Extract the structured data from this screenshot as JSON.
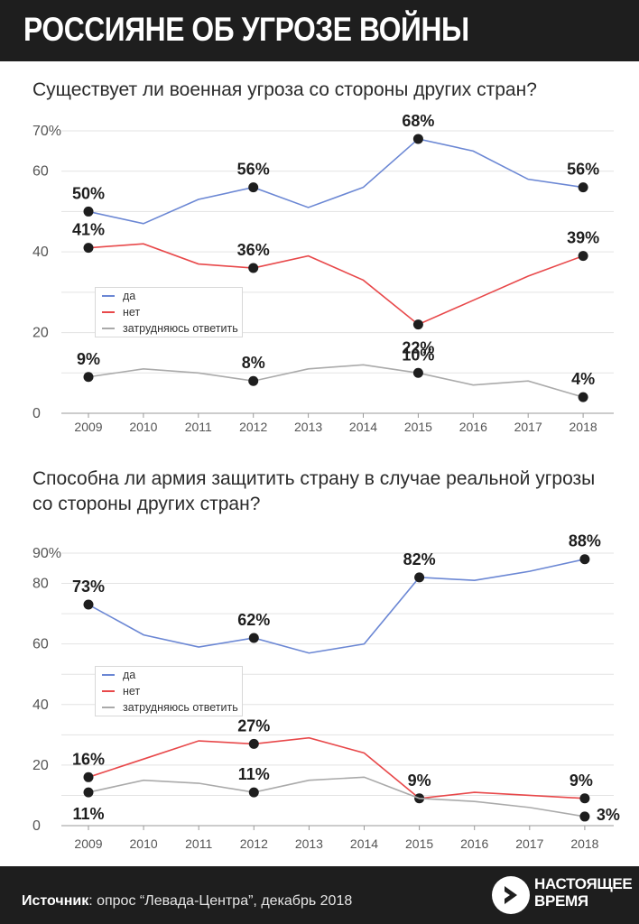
{
  "title": "РОССИЯНЕ ОБ УГРОЗЕ ВОЙНЫ",
  "colors": {
    "blue": "#6b87d4",
    "red": "#e8484a",
    "gray": "#aaaaaa",
    "dark": "#1e1e1e"
  },
  "footer": {
    "source_label": "Источник",
    "source_text": ": опрос “Левада-Центра”, декабрь 2018"
  },
  "logo": {
    "line1": "НАСТОЯЩЕЕ",
    "line2": "ВРЕМЯ",
    "icon": "play-arrow-circle-icon"
  },
  "chart_data": [
    {
      "type": "line",
      "title": "Существует ли военная угроза со стороны других стран?",
      "x": [
        "2009",
        "2010",
        "2011",
        "2012",
        "2013",
        "2014",
        "2015",
        "2016",
        "2017",
        "2018"
      ],
      "ylim": [
        0,
        70
      ],
      "yticks": [
        {
          "v": 0,
          "label": "0"
        },
        {
          "v": 20,
          "label": "20"
        },
        {
          "v": 40,
          "label": "40"
        },
        {
          "v": 60,
          "label": "60"
        },
        {
          "v": 70,
          "label": "70%"
        }
      ],
      "gridlines": [
        10,
        20,
        30,
        40,
        50,
        60,
        70
      ],
      "legend": [
        "да",
        "нет",
        "затрудняюсь ответить"
      ],
      "series": [
        {
          "name": "да",
          "color": "#6b87d4",
          "values": [
            50,
            47,
            53,
            56,
            51,
            56,
            68,
            65,
            58,
            56
          ],
          "labels": [
            {
              "i": 0,
              "text": "50%"
            },
            {
              "i": 3,
              "text": "56%"
            },
            {
              "i": 6,
              "text": "68%"
            },
            {
              "i": 9,
              "text": "56%"
            }
          ]
        },
        {
          "name": "нет",
          "color": "#e8484a",
          "values": [
            41,
            42,
            37,
            36,
            39,
            33,
            22,
            28,
            34,
            39
          ],
          "labels": [
            {
              "i": 0,
              "text": "41%"
            },
            {
              "i": 3,
              "text": "36%"
            },
            {
              "i": 6,
              "text": "22%"
            },
            {
              "i": 9,
              "text": "39%"
            }
          ]
        },
        {
          "name": "затрудняюсь ответить",
          "color": "#aaaaaa",
          "values": [
            9,
            11,
            10,
            8,
            11,
            12,
            10,
            7,
            8,
            4
          ],
          "labels": [
            {
              "i": 0,
              "text": "9%"
            },
            {
              "i": 3,
              "text": "8%"
            },
            {
              "i": 6,
              "text": "10%"
            },
            {
              "i": 9,
              "text": "4%"
            }
          ]
        }
      ]
    },
    {
      "type": "line",
      "title": "Способна ли армия защитить страну в случае реальной угрозы со стороны других стран?",
      "x": [
        "2009",
        "2010",
        "2011",
        "2012",
        "2013",
        "2014",
        "2015",
        "2016",
        "2017",
        "2018"
      ],
      "ylim": [
        0,
        90
      ],
      "yticks": [
        {
          "v": 0,
          "label": "0"
        },
        {
          "v": 20,
          "label": "20"
        },
        {
          "v": 40,
          "label": "40"
        },
        {
          "v": 60,
          "label": "60"
        },
        {
          "v": 80,
          "label": "80"
        },
        {
          "v": 90,
          "label": "90%"
        }
      ],
      "gridlines": [
        10,
        20,
        30,
        40,
        50,
        60,
        70,
        80,
        90
      ],
      "legend": [
        "да",
        "нет",
        "затрудняюсь ответить"
      ],
      "series": [
        {
          "name": "да",
          "color": "#6b87d4",
          "values": [
            73,
            63,
            59,
            62,
            57,
            60,
            82,
            81,
            84,
            88
          ],
          "labels": [
            {
              "i": 0,
              "text": "73%"
            },
            {
              "i": 3,
              "text": "62%"
            },
            {
              "i": 6,
              "text": "82%"
            },
            {
              "i": 9,
              "text": "88%"
            }
          ]
        },
        {
          "name": "нет",
          "color": "#e8484a",
          "values": [
            16,
            22,
            28,
            27,
            29,
            24,
            9,
            11,
            10,
            9
          ],
          "labels": [
            {
              "i": 0,
              "text": "16%"
            },
            {
              "i": 3,
              "text": "27%"
            },
            {
              "i": 6,
              "text": "9%"
            },
            {
              "i": 9,
              "text": "9%"
            }
          ]
        },
        {
          "name": "затрудняюсь ответить",
          "color": "#aaaaaa",
          "values": [
            11,
            15,
            14,
            11,
            15,
            16,
            9,
            8,
            6,
            3
          ],
          "labels": [
            {
              "i": 0,
              "text": "11%"
            },
            {
              "i": 3,
              "text": "11%"
            },
            {
              "i": 9,
              "text": "3%"
            }
          ]
        }
      ]
    }
  ]
}
